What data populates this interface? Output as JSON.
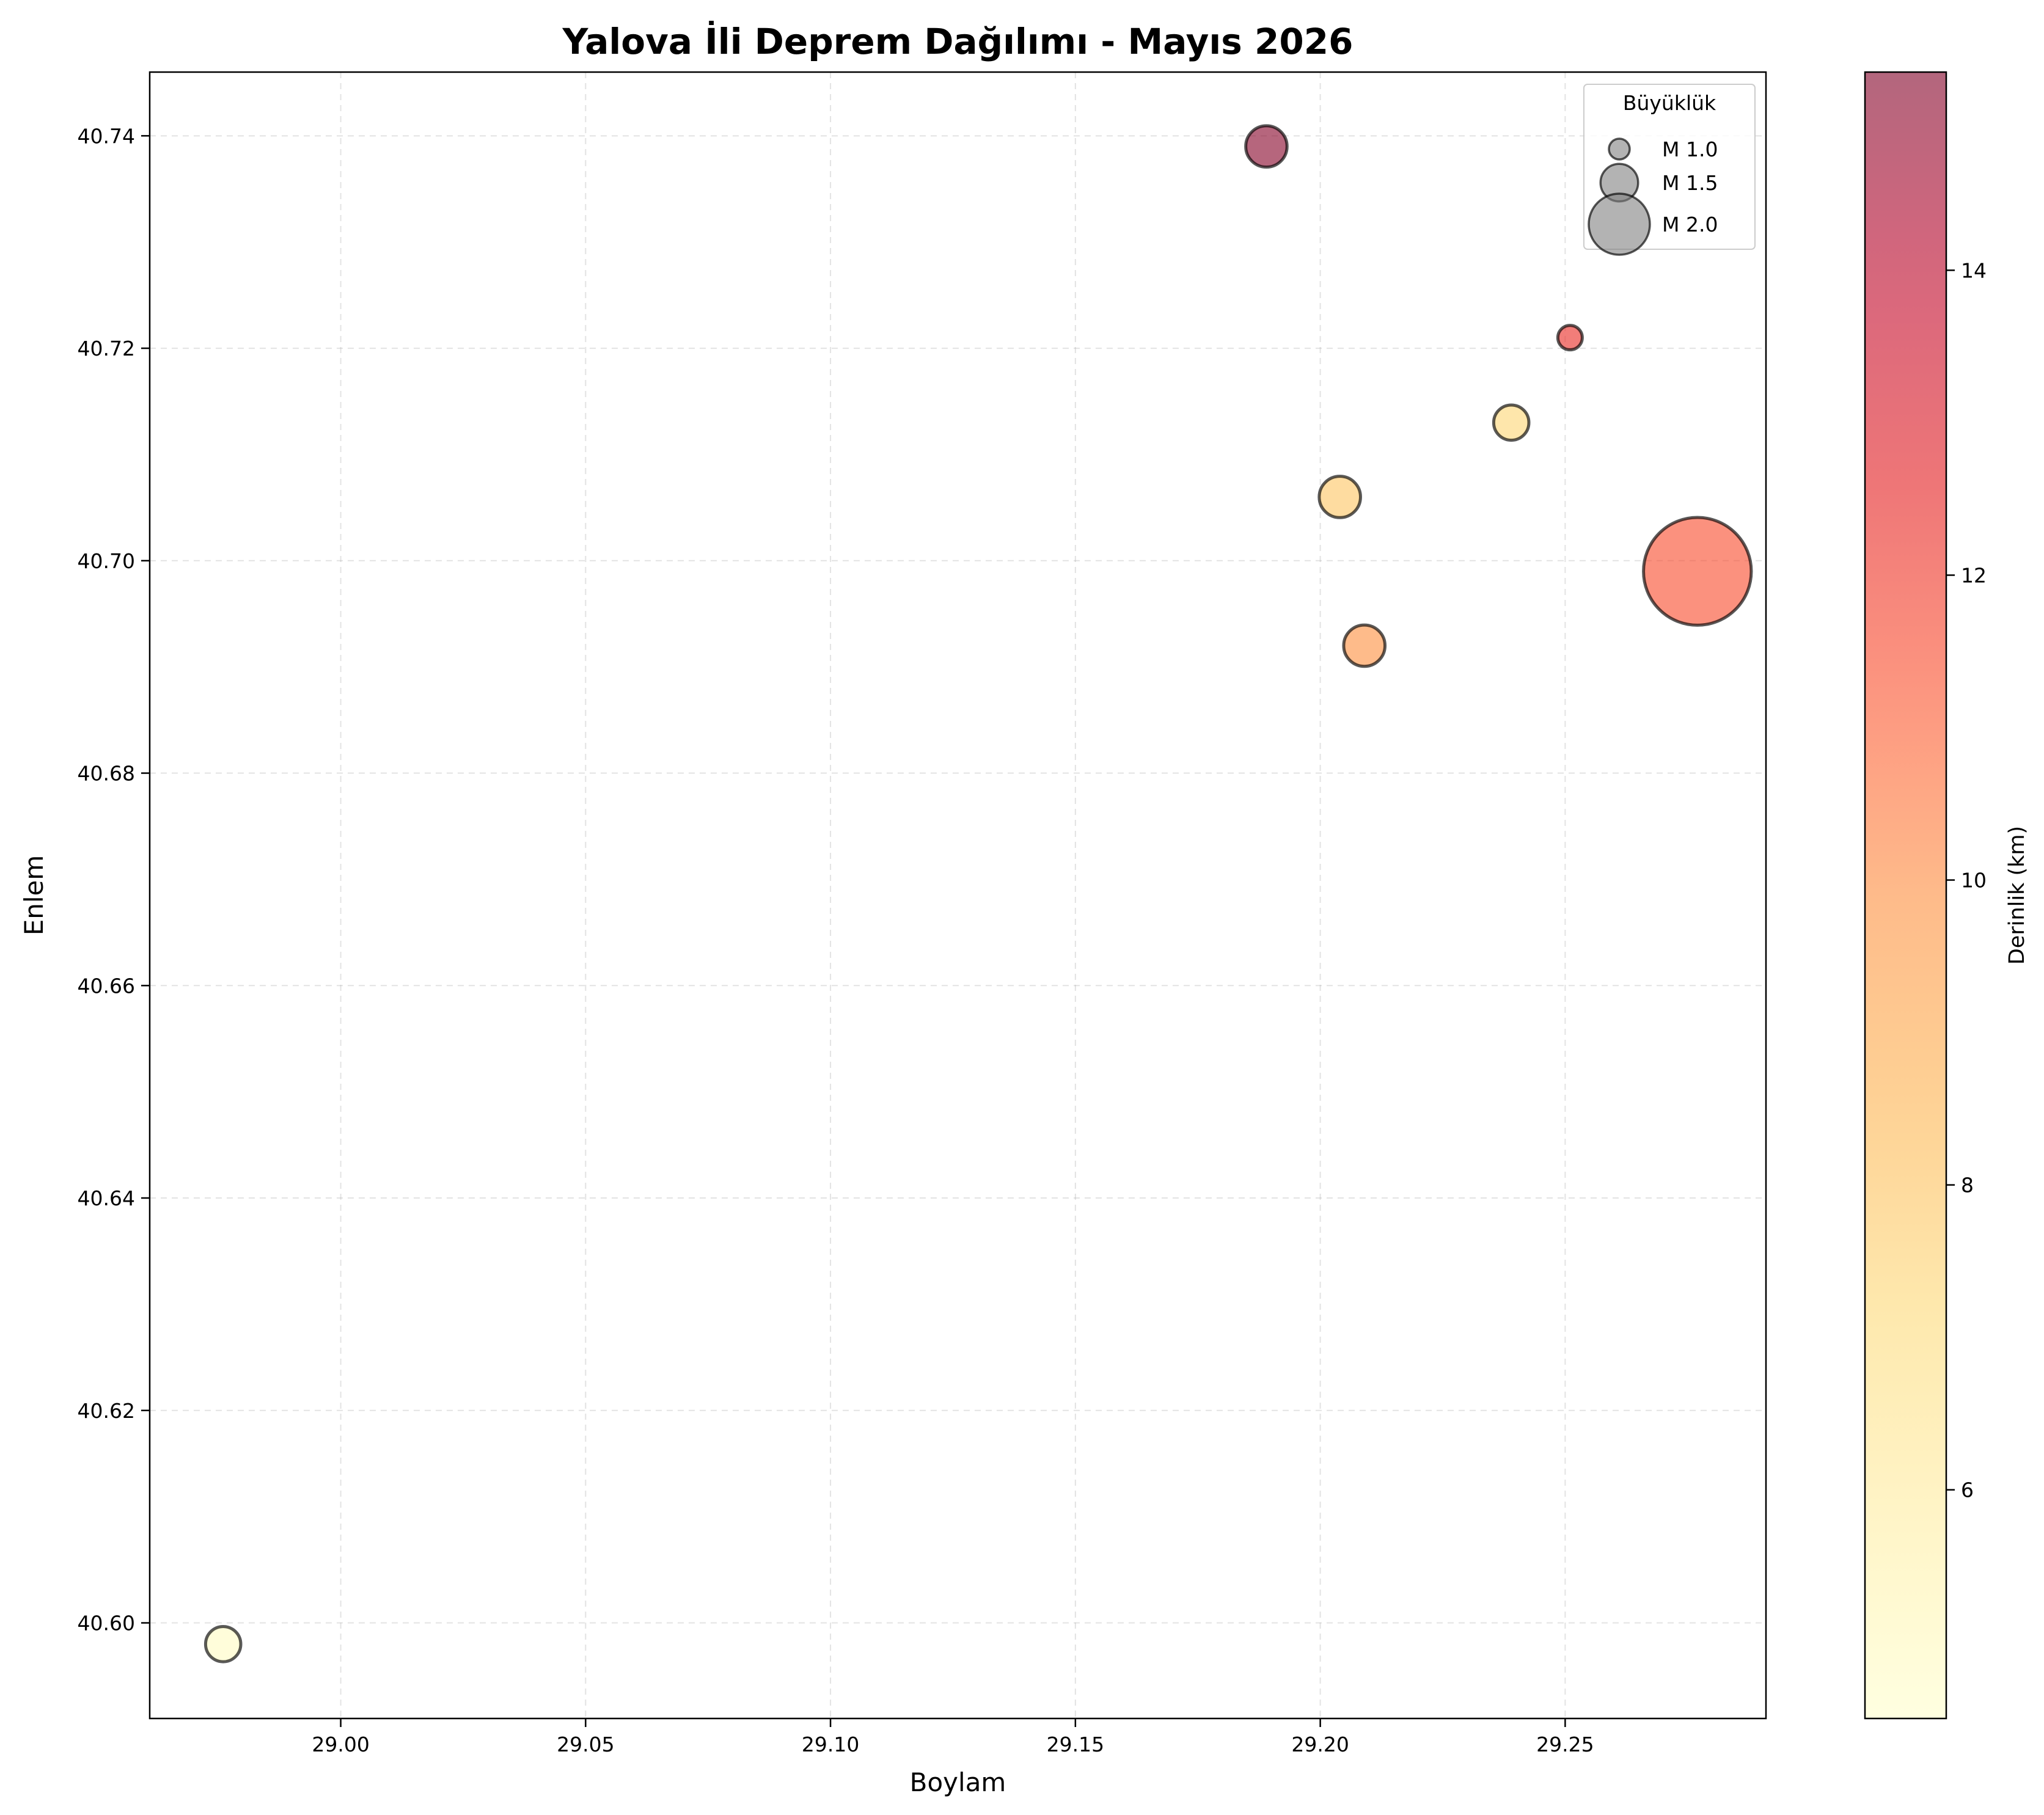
{
  "chart_data": {
    "type": "scatter",
    "title": "Yalova İli Deprem Dağılımı - Mayıs 2026",
    "xlabel": "Boylam",
    "ylabel": "Enlem",
    "xlim": [
      28.961,
      29.291
    ],
    "ylim": [
      40.591,
      40.746
    ],
    "xticks": [
      29.0,
      29.05,
      29.1,
      29.15,
      29.2,
      29.25
    ],
    "xtick_labels": [
      "29.00",
      "29.05",
      "29.10",
      "29.15",
      "29.20",
      "29.25"
    ],
    "yticks": [
      40.6,
      40.62,
      40.64,
      40.66,
      40.68,
      40.7,
      40.72,
      40.74
    ],
    "ytick_labels": [
      "40.60",
      "40.62",
      "40.64",
      "40.66",
      "40.68",
      "40.70",
      "40.72",
      "40.74"
    ],
    "grid": true,
    "points": [
      {
        "x": 28.976,
        "y": 40.598,
        "magnitude": 1.2,
        "depth": 4.8
      },
      {
        "x": 29.189,
        "y": 40.739,
        "magnitude": 1.3,
        "depth": 15.2
      },
      {
        "x": 29.251,
        "y": 40.721,
        "magnitude": 1.0,
        "depth": 12.3
      },
      {
        "x": 29.239,
        "y": 40.713,
        "magnitude": 1.2,
        "depth": 7.3
      },
      {
        "x": 29.204,
        "y": 40.706,
        "magnitude": 1.3,
        "depth": 7.9
      },
      {
        "x": 29.209,
        "y": 40.692,
        "magnitude": 1.3,
        "depth": 9.9
      },
      {
        "x": 29.277,
        "y": 40.699,
        "magnitude": 2.1,
        "depth": 11.4
      }
    ],
    "legend": {
      "title": "Büyüklük",
      "placement": "top-right",
      "entries": [
        {
          "label": "M 1.0",
          "magnitude": 1.0
        },
        {
          "label": "M 1.5",
          "magnitude": 1.5
        },
        {
          "label": "M 2.0",
          "magnitude": 2.0
        }
      ]
    },
    "colorbar": {
      "label": "Derinlik (km)",
      "range": [
        4.5,
        15.3
      ],
      "ticks": [
        6,
        8,
        10,
        12,
        14
      ],
      "tick_labels": [
        "6",
        "8",
        "10",
        "12",
        "14"
      ],
      "colormap": [
        "#ffffcc",
        "#ffeda0",
        "#fed976",
        "#feb24c",
        "#fd8d3c",
        "#fc4e2a",
        "#e31a1c",
        "#bd0026",
        "#800026"
      ],
      "alpha": 0.6
    },
    "marker_edge_color": "#000000"
  }
}
